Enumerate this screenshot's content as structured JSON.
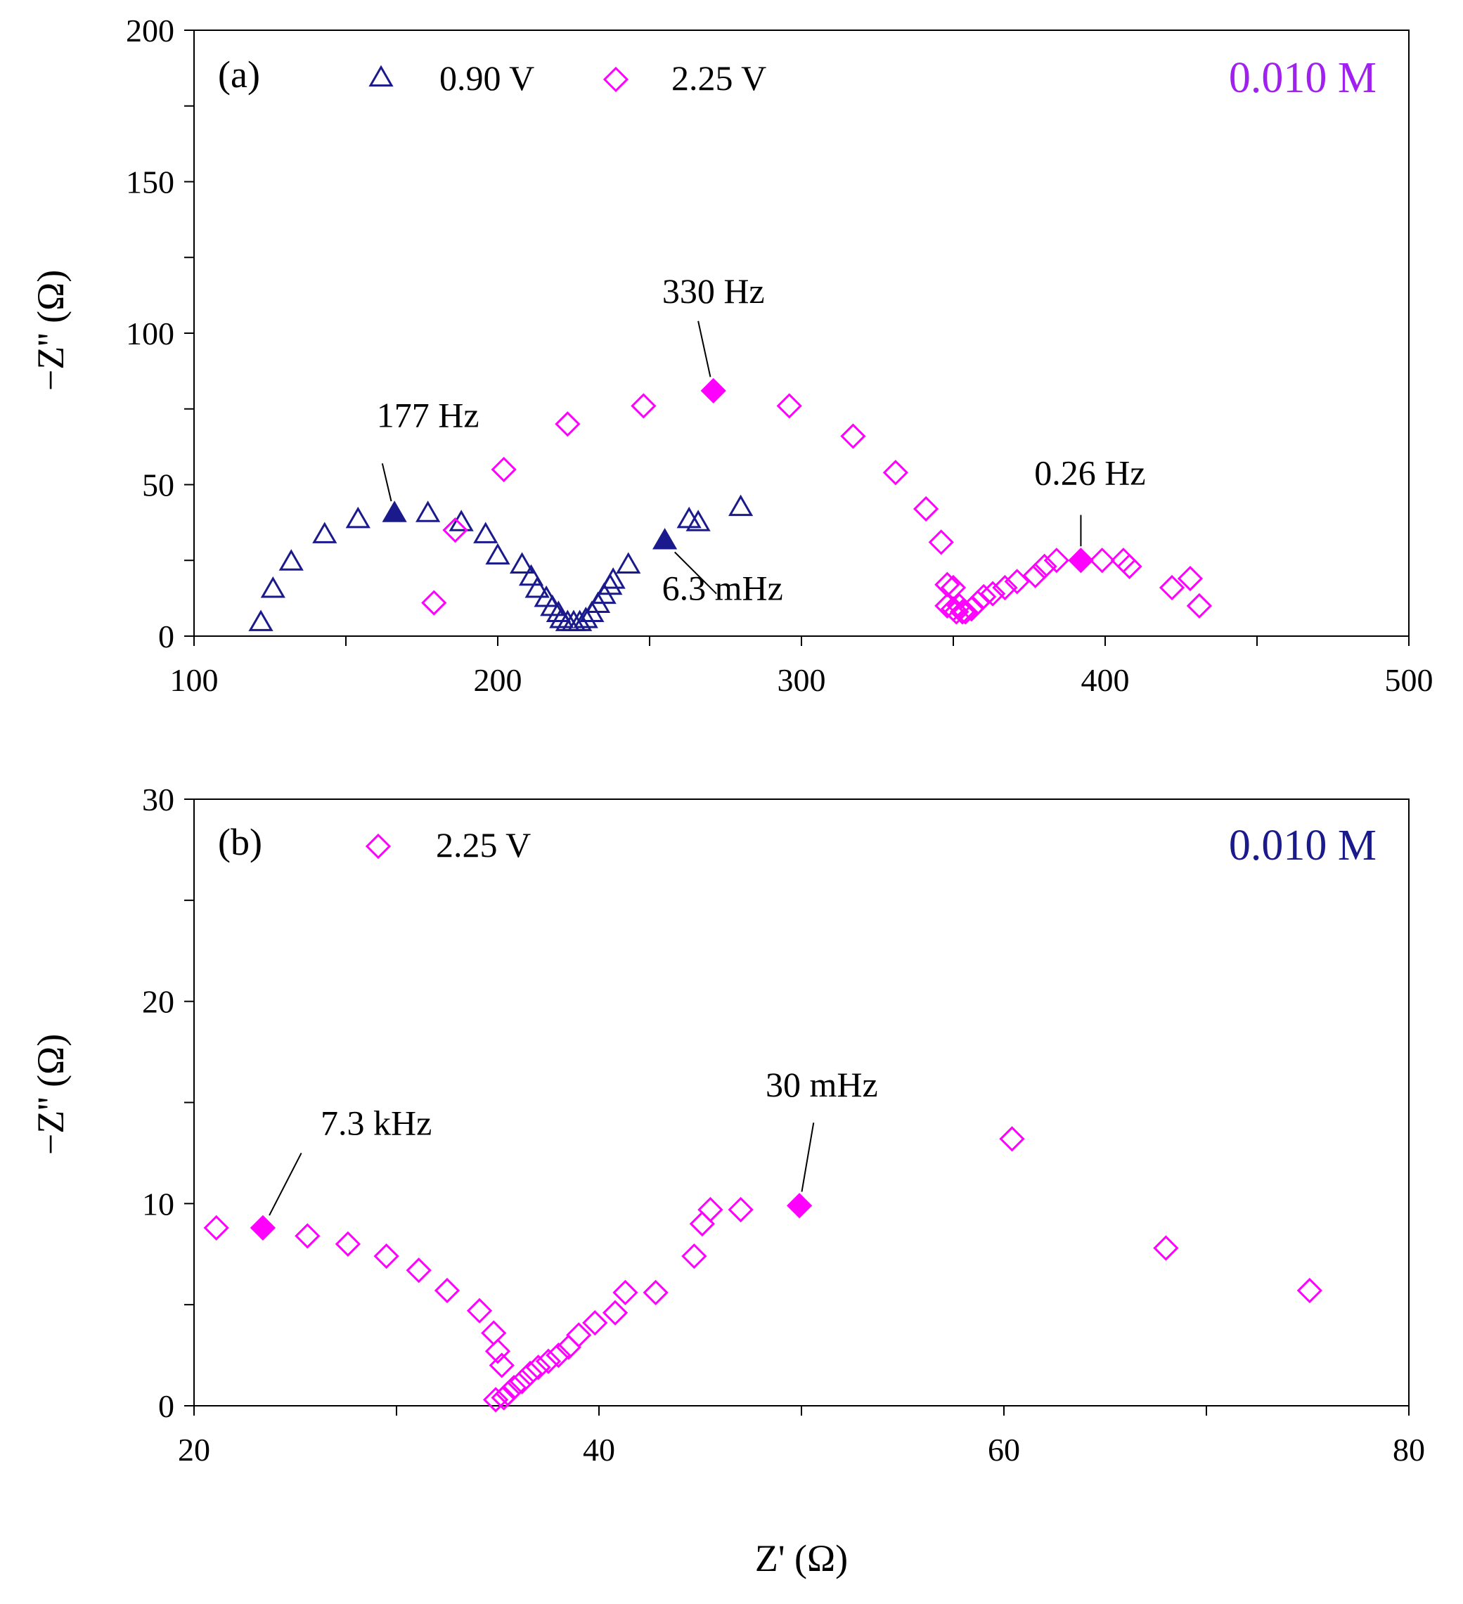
{
  "colors": {
    "navy": "#1a1a8c",
    "magenta": "#ff00ff",
    "violet": "#a020f0"
  },
  "chart_data": [
    {
      "type": "scatter",
      "panel_label": "(a)",
      "corner_label": "0.010 M",
      "corner_label_color": "#a020f0",
      "xlabel": "",
      "ylabel": "−Z'' (Ω)",
      "xlim": [
        100,
        500
      ],
      "ylim": [
        0,
        200
      ],
      "xticks": [
        100,
        200,
        300,
        400,
        500
      ],
      "yticks": [
        0,
        50,
        100,
        150,
        200
      ],
      "legend_position": "top-left",
      "series": [
        {
          "name": "0.90 V",
          "marker": "triangle",
          "color": "#1a1a8c",
          "points": [
            [
              122,
              4
            ],
            [
              126,
              15
            ],
            [
              132,
              24
            ],
            [
              143,
              33
            ],
            [
              154,
              38
            ],
            [
              177,
              40
            ],
            [
              188,
              37
            ],
            [
              196,
              33
            ],
            [
              200,
              26
            ],
            [
              208,
              23
            ],
            [
              211,
              19
            ],
            [
              213,
              15
            ],
            [
              216,
              12
            ],
            [
              218,
              9
            ],
            [
              220,
              7
            ],
            [
              221,
              5
            ],
            [
              223,
              4
            ],
            [
              225,
              4
            ],
            [
              227,
              4
            ],
            [
              229,
              5
            ],
            [
              231,
              7
            ],
            [
              233,
              10
            ],
            [
              235,
              13
            ],
            [
              237,
              16
            ],
            [
              238,
              18
            ],
            [
              243,
              23
            ],
            [
              263,
              38
            ],
            [
              266,
              37
            ],
            [
              280,
              42
            ]
          ],
          "filled_points": [
            [
              166,
              40
            ],
            [
              255,
              31
            ]
          ]
        },
        {
          "name": "2.25 V",
          "marker": "diamond",
          "color": "#ff00ff",
          "points": [
            [
              179,
              11
            ],
            [
              186,
              35
            ],
            [
              202,
              55
            ],
            [
              223,
              70
            ],
            [
              248,
              76
            ],
            [
              296,
              76
            ],
            [
              317,
              66
            ],
            [
              331,
              54
            ],
            [
              341,
              42
            ],
            [
              346,
              31
            ],
            [
              348,
              17
            ],
            [
              350,
              16
            ],
            [
              348,
              10
            ],
            [
              350,
              9
            ],
            [
              352,
              10
            ],
            [
              351,
              8
            ],
            [
              353,
              8
            ],
            [
              354,
              8
            ],
            [
              356,
              9
            ],
            [
              358,
              11
            ],
            [
              360,
              13
            ],
            [
              363,
              14
            ],
            [
              367,
              16
            ],
            [
              371,
              18
            ],
            [
              377,
              20
            ],
            [
              380,
              23
            ],
            [
              384,
              25
            ],
            [
              399,
              25
            ],
            [
              406,
              25
            ],
            [
              408,
              23
            ],
            [
              422,
              16
            ],
            [
              428,
              19
            ],
            [
              431,
              10
            ]
          ],
          "filled_points": [
            [
              271,
              81
            ],
            [
              392,
              25
            ]
          ]
        }
      ],
      "annotations": [
        {
          "text": "177 Hz",
          "point": [
            166,
            40
          ],
          "label_at": [
            177,
            69
          ],
          "anchor_at": [
            162,
            57
          ]
        },
        {
          "text": "330 Hz",
          "point": [
            271,
            81
          ],
          "label_at": [
            271,
            110
          ],
          "anchor_at": [
            266,
            104
          ]
        },
        {
          "text": "0.26 Hz",
          "point": [
            392,
            25
          ],
          "label_at": [
            395,
            50
          ],
          "anchor_at": [
            392,
            40
          ]
        },
        {
          "text": "6.3 mHz",
          "point": [
            255,
            31
          ],
          "label_at": [
            274,
            12
          ],
          "anchor_at": [
            272,
            14
          ]
        }
      ]
    },
    {
      "type": "scatter",
      "panel_label": "(b)",
      "corner_label": "0.010 M",
      "corner_label_color": "#1a1a8c",
      "xlabel": "Z' (Ω)",
      "ylabel": "−Z'' (Ω)",
      "xlim": [
        20,
        80
      ],
      "ylim": [
        0,
        30
      ],
      "xticks": [
        20,
        40,
        60,
        80
      ],
      "yticks": [
        0,
        10,
        20,
        30
      ],
      "legend_position": "top-left",
      "series": [
        {
          "name": "2.25 V",
          "marker": "diamond",
          "color": "#ff00ff",
          "points": [
            [
              21.1,
              8.8
            ],
            [
              25.6,
              8.4
            ],
            [
              27.6,
              8.0
            ],
            [
              29.5,
              7.4
            ],
            [
              31.1,
              6.7
            ],
            [
              32.5,
              5.7
            ],
            [
              34.1,
              4.7
            ],
            [
              34.8,
              3.6
            ],
            [
              35.0,
              2.7
            ],
            [
              35.2,
              2.0
            ],
            [
              34.9,
              0.3
            ],
            [
              35.3,
              0.4
            ],
            [
              35.5,
              0.6
            ],
            [
              35.8,
              0.9
            ],
            [
              36.2,
              1.2
            ],
            [
              36.6,
              1.6
            ],
            [
              37.0,
              1.9
            ],
            [
              37.5,
              2.2
            ],
            [
              38.0,
              2.5
            ],
            [
              38.5,
              2.9
            ],
            [
              39.0,
              3.5
            ],
            [
              39.8,
              4.1
            ],
            [
              40.8,
              4.6
            ],
            [
              41.3,
              5.6
            ],
            [
              42.8,
              5.6
            ],
            [
              44.7,
              7.4
            ],
            [
              45.1,
              9.0
            ],
            [
              45.5,
              9.7
            ],
            [
              47.0,
              9.7
            ],
            [
              60.4,
              13.2
            ],
            [
              68.0,
              7.8
            ],
            [
              75.1,
              5.7
            ]
          ],
          "filled_points": [
            [
              23.4,
              8.8
            ],
            [
              49.9,
              9.9
            ]
          ]
        }
      ],
      "annotations": [
        {
          "text": "7.3 kHz",
          "point": [
            23.4,
            8.8
          ],
          "label_at": [
            29.0,
            13.4
          ],
          "anchor_at": [
            25.3,
            12.5
          ]
        },
        {
          "text": "30 mHz",
          "point": [
            49.9,
            9.9
          ],
          "label_at": [
            51.0,
            15.3
          ],
          "anchor_at": [
            50.6,
            14.0
          ]
        }
      ]
    }
  ]
}
